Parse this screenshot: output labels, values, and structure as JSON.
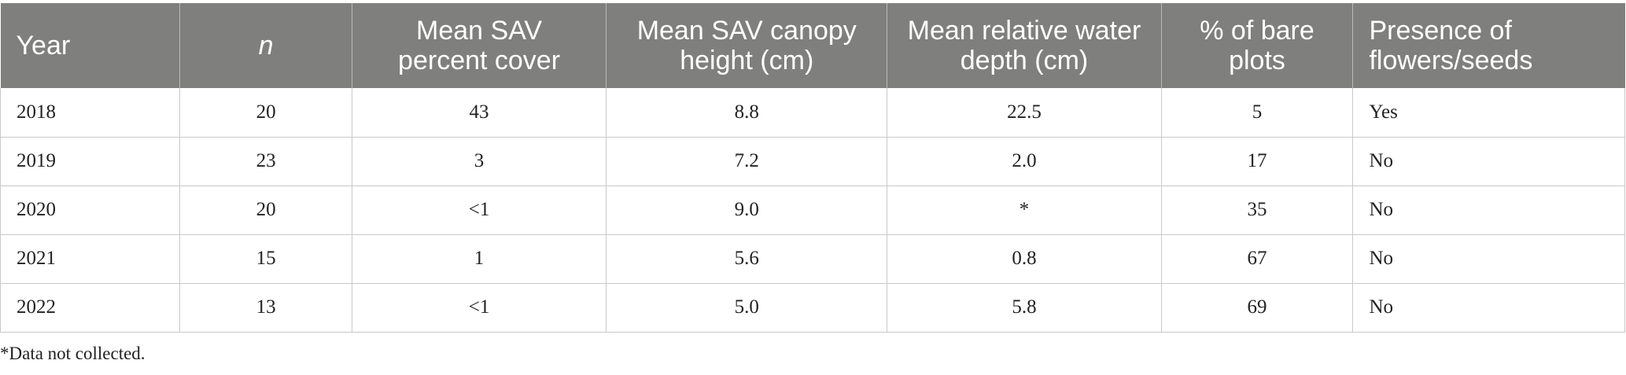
{
  "table": {
    "headers": [
      "Year",
      "n",
      "Mean SAV percent cover",
      "Mean SAV canopy height (cm)",
      "Mean relative water depth (cm)",
      "% of bare plots",
      "Presence of flowers/seeds"
    ],
    "rows": [
      [
        "2018",
        "20",
        "43",
        "8.8",
        "22.5",
        "5",
        "Yes"
      ],
      [
        "2019",
        "23",
        "3",
        "7.2",
        "2.0",
        "17",
        "No"
      ],
      [
        "2020",
        "20",
        "<1",
        "9.0",
        "*",
        "35",
        "No"
      ],
      [
        "2021",
        "15",
        "1",
        "5.6",
        "0.8",
        "67",
        "No"
      ],
      [
        "2022",
        "13",
        "<1",
        "5.0",
        "5.8",
        "69",
        "No"
      ]
    ]
  },
  "footnote": "*Data not collected."
}
